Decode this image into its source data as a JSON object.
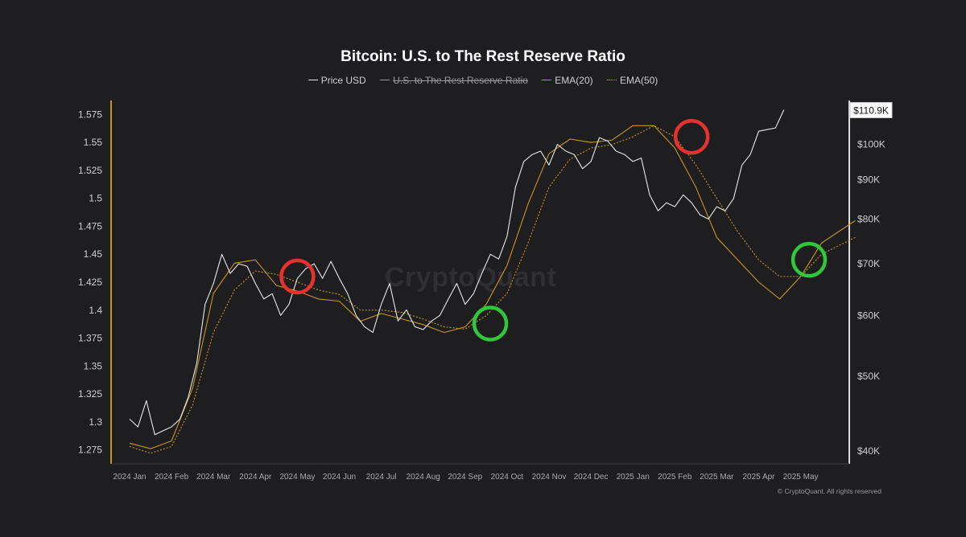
{
  "chart_data": {
    "type": "line",
    "title": "Bitcoin: U.S. to The Rest Reserve Ratio",
    "legend": [
      {
        "name": "Price USD",
        "color": "#e8e8e8",
        "style": "solid",
        "visible": true
      },
      {
        "name": "U.S. to The Rest Reserve Ratio",
        "color": "#9a9a9a",
        "style": "solid",
        "visible": false
      },
      {
        "name": "EMA(20)",
        "color": "#c8961e",
        "style": "solid",
        "visible": true
      },
      {
        "name": "EMA(50)",
        "color": "#c8961e",
        "style": "dotted",
        "visible": true
      }
    ],
    "legend_placement": "top-center",
    "x_tick_labels": [
      "2024 Jan",
      "2024 Feb",
      "2024 Mar",
      "2024 Apr",
      "2024 May",
      "2024 Jun",
      "2024 Jul",
      "2024 Aug",
      "2024 Sep",
      "2024 Oct",
      "2024 Nov",
      "2024 Dec",
      "2025 Jan",
      "2025 Feb",
      "2025 Mar",
      "2025 Apr",
      "2025 May"
    ],
    "left_axis": {
      "ticks": [
        "1.275",
        "1.3",
        "1.325",
        "1.35",
        "1.375",
        "1.4",
        "1.425",
        "1.45",
        "1.475",
        "1.5",
        "1.525",
        "1.55",
        "1.575"
      ],
      "range": [
        1.2625,
        1.5875
      ]
    },
    "right_axis": {
      "scale": "log",
      "ticks": [
        [
          "$40K",
          40000
        ],
        [
          "$50K",
          50000
        ],
        [
          "$60K",
          60000
        ],
        [
          "$70K",
          70000
        ],
        [
          "$80K",
          80000
        ],
        [
          "$90K",
          90000
        ],
        [
          "$100K",
          100000
        ]
      ],
      "range": [
        38500,
        114000
      ],
      "last_value_label": "$110.9K"
    },
    "grid": false,
    "series": [
      {
        "name": "Price USD",
        "axis": "right",
        "x_month_index": [
          0,
          0.2,
          0.4,
          0.6,
          0.8,
          1,
          1.2,
          1.4,
          1.6,
          1.8,
          2,
          2.2,
          2.4,
          2.6,
          2.8,
          3,
          3.2,
          3.4,
          3.6,
          3.8,
          4,
          4.2,
          4.4,
          4.6,
          4.8,
          5,
          5.2,
          5.4,
          5.6,
          5.8,
          6,
          6.2,
          6.4,
          6.6,
          6.8,
          7,
          7.2,
          7.4,
          7.6,
          7.8,
          8,
          8.2,
          8.4,
          8.6,
          8.8,
          9,
          9.2,
          9.4,
          9.6,
          9.8,
          10,
          10.2,
          10.4,
          10.6,
          10.8,
          11,
          11.2,
          11.4,
          11.6,
          11.8,
          12,
          12.2,
          12.4,
          12.6,
          12.8,
          13,
          13.2,
          13.4,
          13.6,
          13.8,
          14,
          14.2,
          14.4,
          14.6,
          14.8,
          15,
          15.2,
          15.4,
          15.6,
          15.8,
          16,
          16.2,
          16.4,
          16.6,
          16.8,
          17.3
        ],
        "values": [
          44000,
          43000,
          46500,
          42000,
          42500,
          43000,
          44000,
          47000,
          52000,
          62000,
          66000,
          72000,
          68000,
          70000,
          69500,
          66000,
          63000,
          64000,
          60000,
          62000,
          67000,
          69000,
          70000,
          67000,
          70500,
          67000,
          64000,
          60000,
          58000,
          57000,
          62000,
          66000,
          59000,
          61000,
          58000,
          57500,
          59000,
          60000,
          63000,
          66000,
          62000,
          64000,
          68000,
          72000,
          71000,
          76000,
          88000,
          95000,
          97000,
          98000,
          94000,
          100000,
          98000,
          97000,
          93000,
          95000,
          102000,
          101000,
          98000,
          97000,
          95000,
          96000,
          86000,
          82000,
          84000,
          83000,
          86000,
          84000,
          81000,
          80000,
          83000,
          82000,
          85000,
          94000,
          97000,
          104000,
          104500,
          105000,
          110900
        ]
      },
      {
        "name": "EMA(20)",
        "axis": "left",
        "x_month_index": [
          0,
          0.5,
          1,
          1.5,
          2,
          2.5,
          3,
          3.5,
          4,
          4.5,
          5,
          5.5,
          6,
          6.5,
          7,
          7.5,
          8,
          8.5,
          9,
          9.5,
          10,
          10.5,
          11,
          11.5,
          12,
          12.5,
          13,
          13.5,
          14,
          14.5,
          15,
          15.5,
          16,
          16.5,
          17.3
        ],
        "values": [
          1.281,
          1.276,
          1.283,
          1.33,
          1.415,
          1.442,
          1.445,
          1.422,
          1.417,
          1.41,
          1.408,
          1.39,
          1.397,
          1.392,
          1.387,
          1.38,
          1.385,
          1.405,
          1.44,
          1.495,
          1.54,
          1.553,
          1.55,
          1.552,
          1.565,
          1.565,
          1.545,
          1.51,
          1.465,
          1.445,
          1.425,
          1.41,
          1.43,
          1.46,
          1.48
        ]
      },
      {
        "name": "EMA(50)",
        "axis": "left",
        "x_month_index": [
          0,
          0.5,
          1,
          1.5,
          2,
          2.5,
          3,
          3.5,
          4,
          4.5,
          5,
          5.5,
          6,
          6.5,
          7,
          7.5,
          8,
          8.5,
          9,
          9.5,
          10,
          10.5,
          11,
          11.5,
          12,
          12.5,
          13,
          13.5,
          14,
          14.5,
          15,
          15.5,
          16,
          16.5,
          17.3
        ],
        "values": [
          1.278,
          1.272,
          1.278,
          1.315,
          1.38,
          1.418,
          1.435,
          1.432,
          1.425,
          1.418,
          1.414,
          1.4,
          1.4,
          1.398,
          1.392,
          1.385,
          1.383,
          1.395,
          1.415,
          1.46,
          1.51,
          1.535,
          1.545,
          1.548,
          1.555,
          1.565,
          1.555,
          1.53,
          1.5,
          1.47,
          1.445,
          1.43,
          1.43,
          1.45,
          1.465
        ]
      }
    ],
    "annotations": [
      {
        "type": "circle",
        "color": "red",
        "x_month_index": 4.0,
        "y": 1.43
      },
      {
        "type": "circle",
        "color": "green",
        "x_month_index": 8.6,
        "y": 1.388
      },
      {
        "type": "circle",
        "color": "red",
        "x_month_index": 13.4,
        "y": 1.555
      },
      {
        "type": "circle",
        "color": "green",
        "x_month_index": 16.2,
        "y": 1.445
      }
    ]
  },
  "watermark": "CryptoQuant",
  "copyright": "© CryptoQuant. All rights reserved"
}
